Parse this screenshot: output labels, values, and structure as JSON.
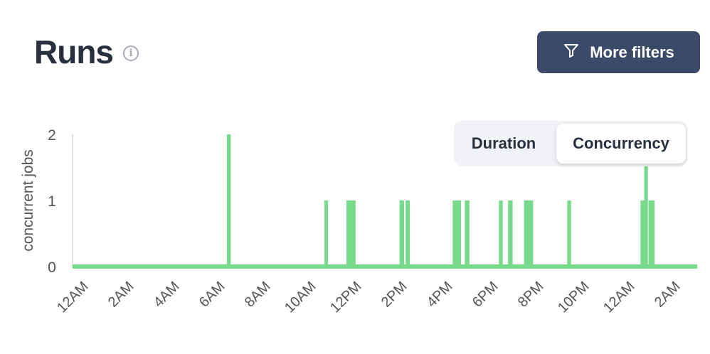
{
  "header": {
    "title": "Runs",
    "info_icon": "info-icon",
    "more_filters_label": "More filters",
    "filter_icon": "filter-icon"
  },
  "toggle": {
    "options": [
      "Duration",
      "Concurrency"
    ],
    "selected": "Concurrency"
  },
  "chart_data": {
    "type": "line",
    "step": true,
    "ylabel": "concurrent jobs",
    "xlabel": "",
    "ylim": [
      0,
      2
    ],
    "yticks": [
      "0",
      "1",
      "2"
    ],
    "xticks": [
      "12AM",
      "2AM",
      "4AM",
      "6AM",
      "8AM",
      "10AM",
      "12PM",
      "2PM",
      "4PM",
      "6PM",
      "8PM",
      "10PM",
      "12AM",
      "2AM"
    ],
    "baseline_value": 0,
    "color": "#77d98a",
    "grid": false,
    "spikes": [
      {
        "day": 0,
        "start": "06:15",
        "end": "06:25",
        "value": 2
      },
      {
        "day": 0,
        "start": "10:32",
        "end": "10:41",
        "value": 1
      },
      {
        "day": 0,
        "start": "11:30",
        "end": "11:54",
        "value": 1
      },
      {
        "day": 0,
        "start": "13:50",
        "end": "14:02",
        "value": 1
      },
      {
        "day": 0,
        "start": "14:06",
        "end": "14:17",
        "value": 1
      },
      {
        "day": 0,
        "start": "16:10",
        "end": "16:32",
        "value": 1
      },
      {
        "day": 0,
        "start": "16:42",
        "end": "16:54",
        "value": 1
      },
      {
        "day": 0,
        "start": "18:12",
        "end": "18:22",
        "value": 1
      },
      {
        "day": 0,
        "start": "18:36",
        "end": "18:48",
        "value": 1
      },
      {
        "day": 0,
        "start": "19:18",
        "end": "19:42",
        "value": 1
      },
      {
        "day": 0,
        "start": "21:12",
        "end": "21:22",
        "value": 1
      },
      {
        "day": 1,
        "start": "00:25",
        "end": "00:35",
        "value": 1
      },
      {
        "day": 1,
        "start": "00:35",
        "end": "00:42",
        "value": 2
      },
      {
        "day": 1,
        "start": "00:46",
        "end": "01:02",
        "value": 1
      }
    ]
  }
}
